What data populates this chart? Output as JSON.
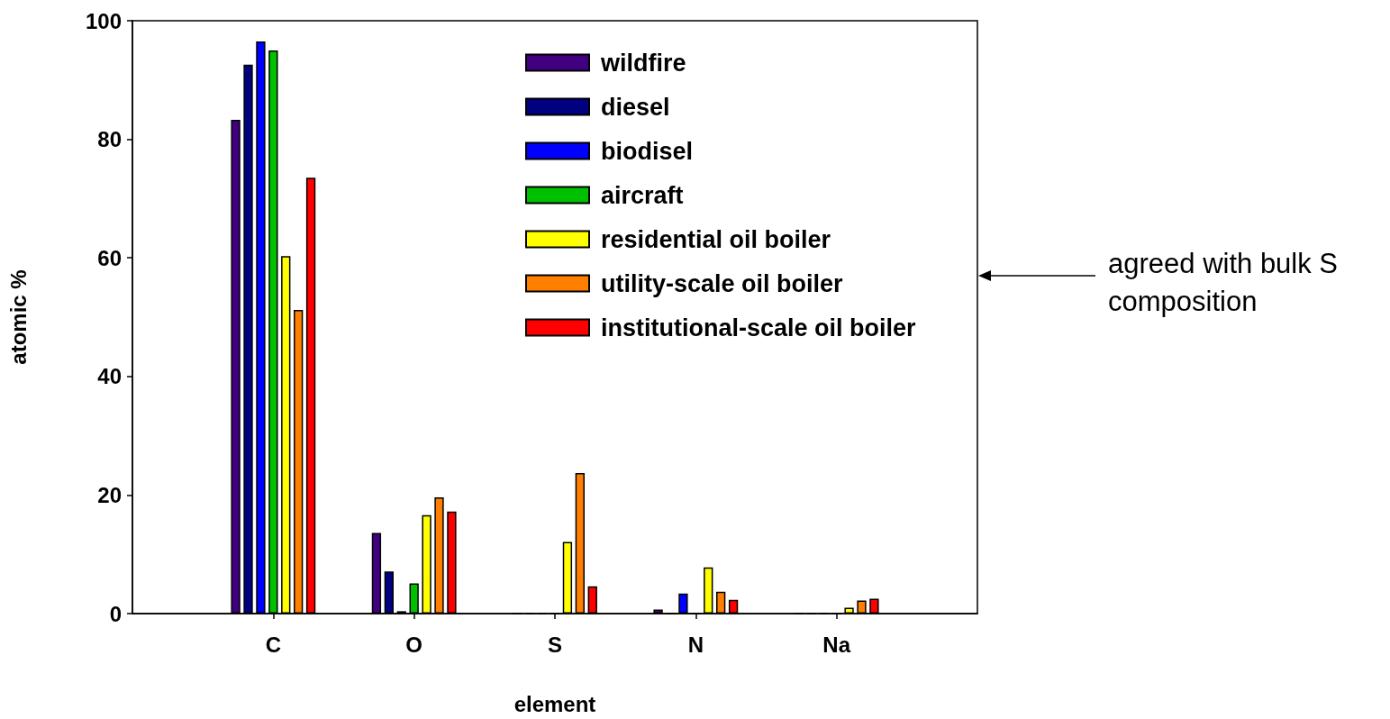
{
  "chart_data": {
    "type": "bar",
    "xlabel": "element",
    "ylabel": "atomic %",
    "categories": [
      "C",
      "O",
      "S",
      "N",
      "Na"
    ],
    "series": [
      {
        "name": "wildfire",
        "color": "#400080",
        "values": [
          83.3,
          13.6,
          0,
          0.7,
          0
        ]
      },
      {
        "name": "diesel",
        "color": "#000080",
        "values": [
          92.6,
          7.1,
          0,
          0,
          0
        ]
      },
      {
        "name": "biodisel",
        "color": "#0000ff",
        "values": [
          96.5,
          0.4,
          0,
          3.4,
          0
        ]
      },
      {
        "name": "aircraft",
        "color": "#00c000",
        "values": [
          95.0,
          5.1,
          0,
          0,
          0
        ]
      },
      {
        "name": "residential oil boiler",
        "color": "#ffff00",
        "values": [
          60.3,
          16.6,
          12.1,
          7.8,
          1.0
        ]
      },
      {
        "name": "utility-scale oil boiler",
        "color": "#ff8000",
        "values": [
          51.2,
          19.6,
          23.7,
          3.7,
          2.2
        ]
      },
      {
        "name": "institutional-scale oil boiler",
        "color": "#ff0000",
        "values": [
          73.5,
          17.2,
          4.6,
          2.3,
          2.5
        ]
      }
    ],
    "ylim": [
      0,
      100
    ],
    "yticks": [
      0,
      20,
      40,
      60,
      80,
      100
    ],
    "grid": false,
    "legend": "top right",
    "annotations": [
      "agreed with bulk S composition"
    ]
  }
}
